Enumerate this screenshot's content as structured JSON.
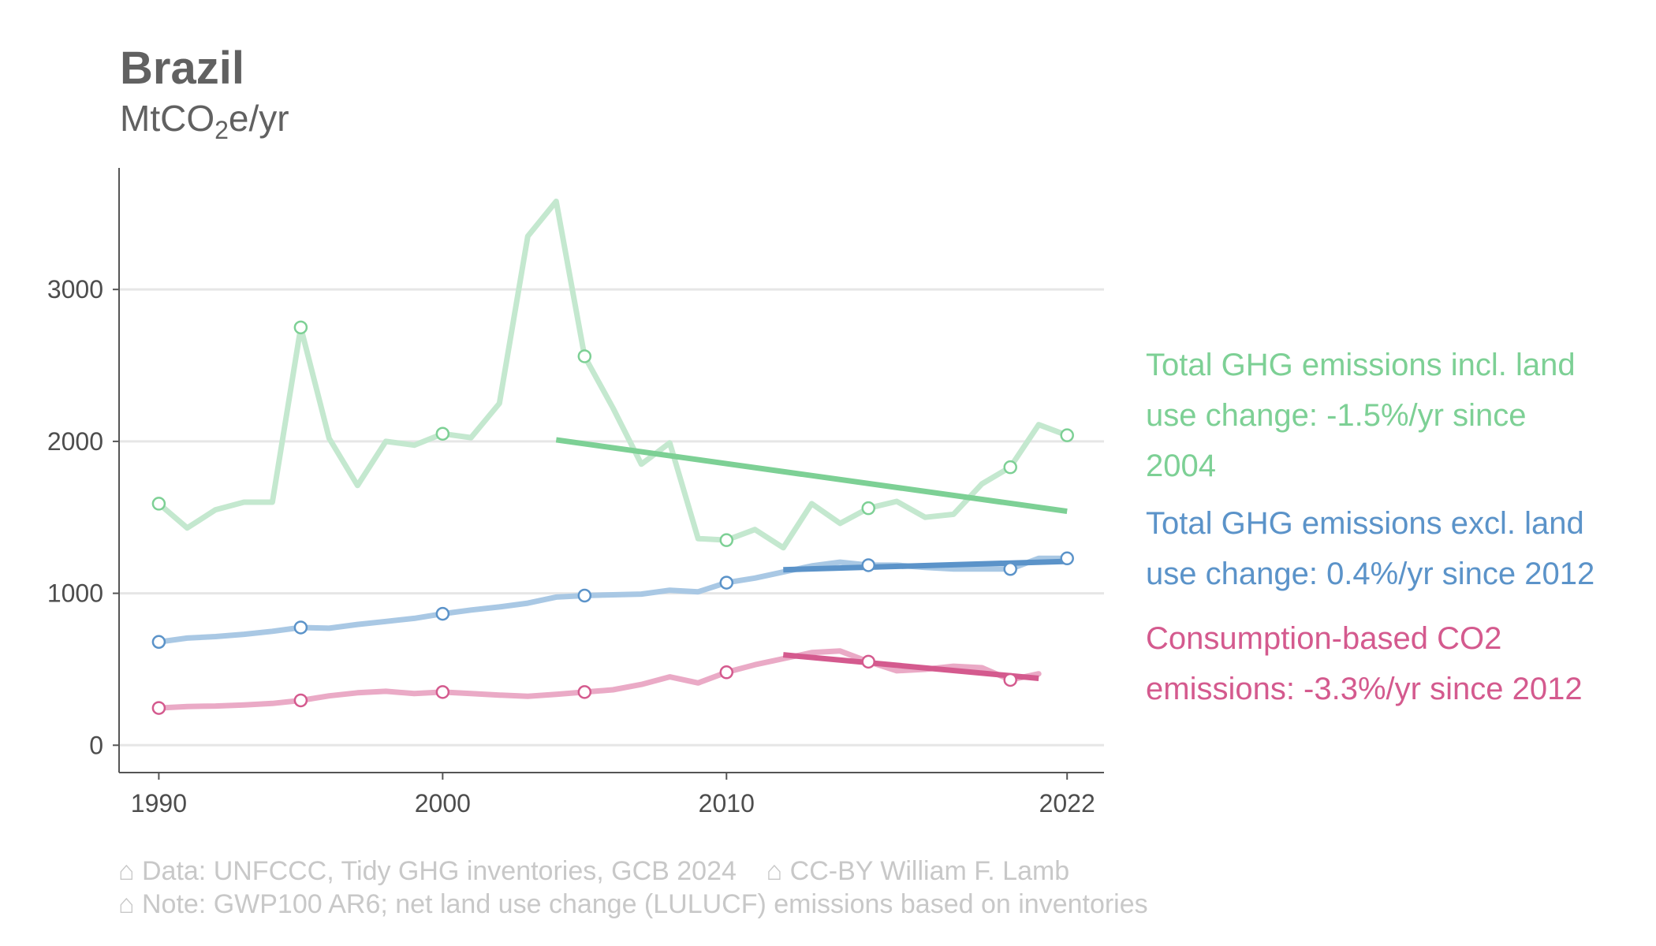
{
  "chart_data": {
    "type": "line",
    "title": "Brazil",
    "subtitle": {
      "prefix": "MtCO",
      "sub": "2",
      "suffix": "e/yr"
    },
    "x": [
      1990,
      1991,
      1992,
      1993,
      1994,
      1995,
      1996,
      1997,
      1998,
      1999,
      2000,
      2001,
      2002,
      2003,
      2004,
      2005,
      2006,
      2007,
      2008,
      2009,
      2010,
      2011,
      2012,
      2013,
      2014,
      2015,
      2016,
      2017,
      2018,
      2019,
      2020,
      2021,
      2022
    ],
    "xlim": [
      1988.6,
      2023.3
    ],
    "ylim": [
      -180,
      3800
    ],
    "x_ticks": [
      1990,
      2000,
      2010,
      2022
    ],
    "x_tick_labels": [
      "1990",
      "2000",
      "2010",
      "2022"
    ],
    "y_ticks": [
      0,
      1000,
      2000,
      3000
    ],
    "y_tick_labels": [
      "0",
      "1000",
      "2000",
      "3000"
    ],
    "grid": "horizontal",
    "marker_years": [
      1990,
      1995,
      2000,
      2005,
      2010,
      2015,
      2020,
      2022
    ],
    "series": [
      {
        "name": "Total GHG emissions incl. land use change: -1.5%/yr since 2004",
        "legend_lines": [
          "Total GHG emissions incl. land",
          "use change: -1.5%/yr since",
          "2004"
        ],
        "color": "#7dd095",
        "light_color": "#c4e8cf",
        "values": [
          1590,
          1430,
          1550,
          1600,
          1600,
          2750,
          2020,
          1710,
          2000,
          1975,
          2050,
          2025,
          2250,
          3350,
          3580,
          2560,
          2220,
          1850,
          1990,
          1360,
          1350,
          1420,
          1300,
          1590,
          1460,
          1560,
          1605,
          1500,
          1520,
          1720,
          1830,
          2110,
          2040
        ],
        "trend": {
          "x": [
            2004,
            2022
          ],
          "y": [
            2010,
            1540
          ]
        }
      },
      {
        "name": "Total GHG emissions excl. land use change: 0.4%/yr since 2012",
        "legend_lines": [
          "Total GHG emissions excl. land",
          "use change: 0.4%/yr since 2012"
        ],
        "color": "#5b93c9",
        "light_color": "#a9c8e4",
        "values": [
          680,
          705,
          715,
          730,
          750,
          775,
          770,
          795,
          815,
          835,
          865,
          890,
          910,
          935,
          975,
          985,
          990,
          995,
          1020,
          1010,
          1070,
          1100,
          1140,
          1180,
          1205,
          1185,
          1185,
          1170,
          1160,
          1160,
          1160,
          1230,
          1230
        ],
        "trend": {
          "x": [
            2012,
            2022
          ],
          "y": [
            1155,
            1210
          ]
        }
      },
      {
        "name": "Consumption-based CO2 emissions: -3.3%/yr since 2012",
        "legend_lines": [
          "Consumption-based CO2",
          "emissions: -3.3%/yr since 2012"
        ],
        "color": "#d45a8e",
        "light_color": "#eaaac6",
        "values": [
          245,
          255,
          258,
          265,
          275,
          295,
          325,
          345,
          355,
          340,
          350,
          340,
          330,
          322,
          335,
          350,
          365,
          400,
          450,
          410,
          480,
          530,
          570,
          610,
          620,
          550,
          490,
          500,
          520,
          510,
          430,
          470,
          null
        ],
        "trend": {
          "x": [
            2012,
            2021
          ],
          "y": [
            595,
            440
          ]
        }
      }
    ]
  },
  "caption": {
    "line1": "⌂ Data: UNFCCC, Tidy GHG inventories, GCB 2024    ⌂ CC-BY William F. Lamb",
    "line2": "⌂ Note: GWP100 AR6; net land use change (LULUCF) emissions based on inventories"
  }
}
